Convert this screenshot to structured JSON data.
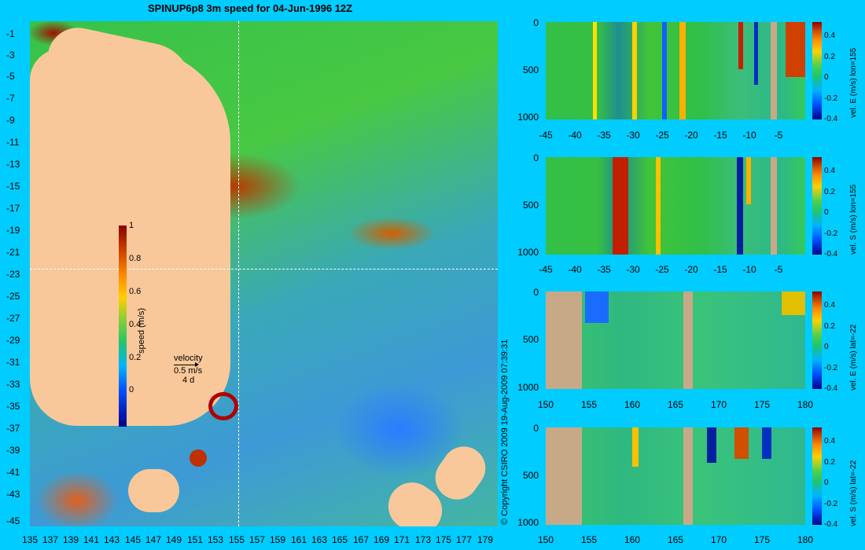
{
  "title": "SPINUP6p8 3m speed for 04-Jun-1996 12Z",
  "map": {
    "lat_ticks": [
      "-1",
      "-3",
      "-5",
      "-7",
      "-9",
      "-11",
      "-13",
      "-15",
      "-17",
      "-19",
      "-21",
      "-23",
      "-25",
      "-27",
      "-29",
      "-31",
      "-33",
      "-35",
      "-37",
      "-39",
      "-41",
      "-43",
      "-45"
    ],
    "lon_ticks": [
      "135",
      "137",
      "139",
      "141",
      "143",
      "145",
      "147",
      "149",
      "151",
      "153",
      "155",
      "157",
      "159",
      "161",
      "163",
      "165",
      "167",
      "169",
      "171",
      "173",
      "175",
      "177",
      "179"
    ],
    "colorbar": {
      "label": "speed (m/s)",
      "ticks": [
        "1",
        "0.8",
        "0.6",
        "0.4",
        "0.2",
        "0"
      ]
    },
    "velocity_key": {
      "title": "velocity",
      "speed": "0.5 m/s",
      "days": "4 d"
    },
    "copyright": "© Copyright CSIRO 2009   19-Aug-2009 07:39:31"
  },
  "panels": [
    {
      "ylabel": "vel. E (m/s) lon=155",
      "yticks": [
        "0",
        "500",
        "1000"
      ],
      "xticks": [
        "-45",
        "-40",
        "-35",
        "-30",
        "-25",
        "-20",
        "-15",
        "-10",
        "-5"
      ],
      "cticks": [
        "0.4",
        "0.2",
        "0",
        "-0.2",
        "-0.4"
      ]
    },
    {
      "ylabel": "vel. S (m/s) lon=155",
      "yticks": [
        "0",
        "500",
        "1000"
      ],
      "xticks": [
        "-45",
        "-40",
        "-35",
        "-30",
        "-25",
        "-20",
        "-15",
        "-10",
        "-5"
      ],
      "cticks": [
        "0.4",
        "0.2",
        "0",
        "-0.2",
        "-0.4"
      ]
    },
    {
      "ylabel": "vel. E (m/s) lat=-22",
      "yticks": [
        "0",
        "500",
        "1000"
      ],
      "xticks": [
        "150",
        "155",
        "160",
        "165",
        "170",
        "175",
        "180"
      ],
      "cticks": [
        "0.4",
        "0.2",
        "0",
        "-0.2",
        "-0.4"
      ]
    },
    {
      "ylabel": "vel. S (m/s) lat=-22",
      "yticks": [
        "0",
        "500",
        "1000"
      ],
      "xticks": [
        "150",
        "155",
        "160",
        "165",
        "170",
        "175",
        "180"
      ],
      "cticks": [
        "0.4",
        "0.2",
        "0",
        "-0.2",
        "-0.4"
      ]
    }
  ]
}
